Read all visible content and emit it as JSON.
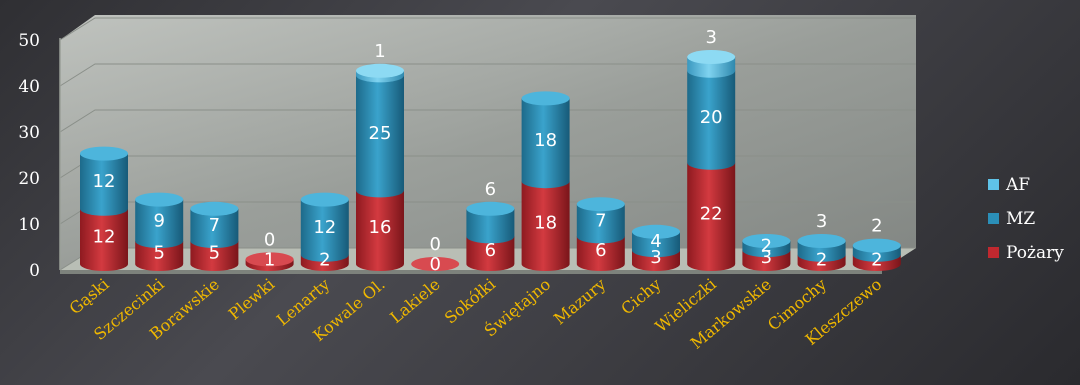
{
  "chart_data": {
    "type": "bar",
    "stacked": true,
    "three_d": true,
    "categories": [
      "Gąski",
      "Szczecinki",
      "Borawskie",
      "Plewki",
      "Lenarty",
      "Kowale Ol.",
      "Lakiele",
      "Sokółki",
      "Świętajno",
      "Mazury",
      "Cichy",
      "Wieliczki",
      "Markowskie",
      "Cimochy",
      "Kleszczewo"
    ],
    "series": [
      {
        "name": "Pożary",
        "color": "#c0282f",
        "values": [
          12,
          5,
          5,
          1,
          2,
          16,
          0,
          6,
          18,
          6,
          3,
          22,
          3,
          2,
          2
        ]
      },
      {
        "name": "MZ",
        "color": "#2b8fb8",
        "values": [
          12,
          9,
          7,
          0,
          12,
          25,
          0,
          6,
          18,
          7,
          4,
          20,
          2,
          3,
          2
        ]
      },
      {
        "name": "AF",
        "color": "#5fc3e8",
        "values": [
          0,
          0,
          0,
          0,
          0,
          1,
          0,
          0,
          0,
          0,
          0,
          3,
          0,
          0,
          0
        ]
      }
    ],
    "data_labels": [
      [
        "12",
        "12",
        ""
      ],
      [
        "5",
        "9",
        ""
      ],
      [
        "5",
        "7",
        ""
      ],
      [
        "1",
        "",
        "0"
      ],
      [
        "2",
        "12",
        ""
      ],
      [
        "16",
        "25",
        "1"
      ],
      [
        "0",
        "",
        "0"
      ],
      [
        "6",
        "",
        "6"
      ],
      [
        "18",
        "18",
        ""
      ],
      [
        "6",
        "7",
        ""
      ],
      [
        "3",
        "4",
        ""
      ],
      [
        "22",
        "20",
        "3"
      ],
      [
        "3",
        "2",
        ""
      ],
      [
        "2",
        "",
        "3"
      ],
      [
        "2",
        "",
        "2"
      ]
    ],
    "yticks": [
      0,
      10,
      20,
      30,
      40,
      50
    ],
    "ylim": [
      0,
      50
    ],
    "legend": [
      "AF",
      "MZ",
      "Pożary"
    ],
    "legend_position": "right",
    "grid": true
  }
}
